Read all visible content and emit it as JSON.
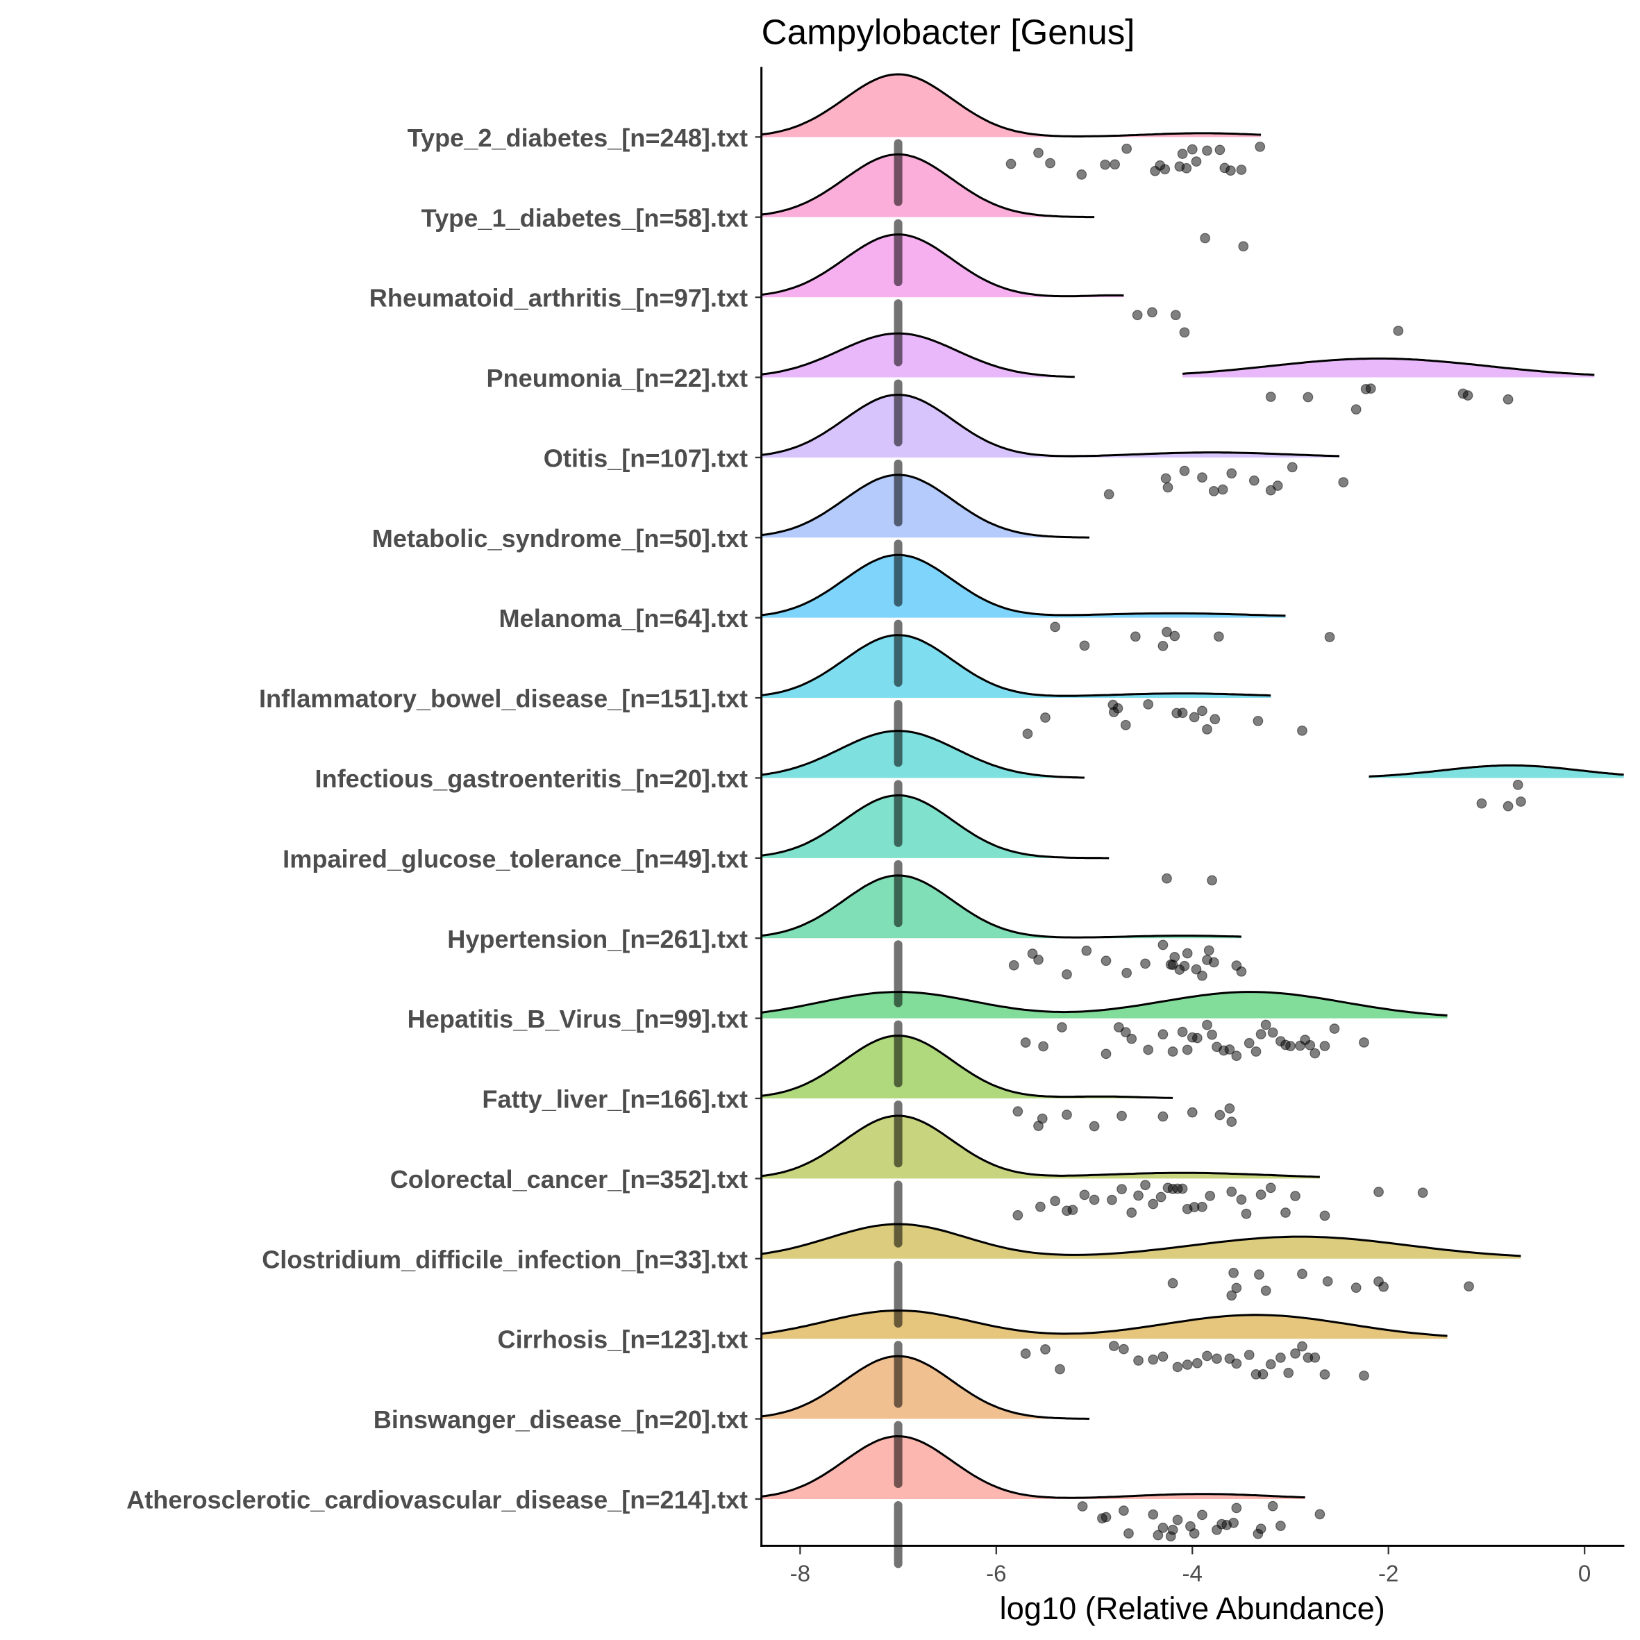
{
  "chart_data": {
    "type": "raincloud",
    "title": "Campylobacter [Genus]",
    "xlabel": "log10 (Relative Abundance)",
    "ylabel": "",
    "xlim": [
      -8.4,
      0.4
    ],
    "xticks": [
      -8,
      -6,
      -4,
      -2,
      0
    ],
    "xtick_labels": [
      "-8",
      "-6",
      "-4",
      "-2",
      "0"
    ],
    "grid": false,
    "legend": "none",
    "zero_value": -7,
    "groups": [
      {
        "label": "Type_2_diabetes_[n=248].txt",
        "color": "#FDB2C6",
        "range": [
          -8.4,
          -3.3
        ],
        "density": [
          [
            -7,
            0.55,
            1.0
          ],
          [
            -3.9,
            0.6,
            0.06
          ]
        ],
        "points": [
          -5.85,
          -5.57,
          -5.45,
          -5.13,
          -4.89,
          -4.79,
          -4.67,
          -4.38,
          -4.33,
          -4.28,
          -4.13,
          -4.1,
          -4.06,
          -4.0,
          -3.96,
          -3.85,
          -3.72,
          -3.67,
          -3.61,
          -3.5,
          -3.31
        ]
      },
      {
        "label": "Type_1_diabetes_[n=58].txt",
        "color": "#FBAEDA",
        "range": [
          -8.4,
          -5.0
        ],
        "density": [
          [
            -7,
            0.55,
            1.0
          ]
        ],
        "points": [
          -3.87,
          -3.48
        ]
      },
      {
        "label": "Rheumatoid_arthritis_[n=97].txt",
        "color": "#F6B0F0",
        "range": [
          -8.4,
          -4.7
        ],
        "density": [
          [
            -7,
            0.55,
            1.0
          ],
          [
            -4.8,
            0.3,
            0.03
          ]
        ],
        "points": [
          -4.56,
          -4.41,
          -4.17,
          -4.08,
          -1.9
        ]
      },
      {
        "label": "Pneumonia_[n=22].txt",
        "color": "#E9B8FB",
        "range": [
          -8.4,
          -5.2
        ],
        "density": [
          [
            -7,
            0.6,
            0.7
          ]
        ],
        "range2": [
          -4.1,
          0.1
        ],
        "density2": [
          [
            -2.1,
            1.1,
            0.3
          ]
        ],
        "points": [
          -3.2,
          -2.82,
          -2.33,
          -2.23,
          -2.18,
          -1.24,
          -1.19,
          -0.78
        ]
      },
      {
        "label": "Otitis_[n=107].txt",
        "color": "#D7C4FC",
        "range": [
          -8.4,
          -2.5
        ],
        "density": [
          [
            -7,
            0.55,
            1.0
          ],
          [
            -3.8,
            0.8,
            0.08
          ]
        ],
        "points": [
          -4.85,
          -4.27,
          -4.25,
          -4.08,
          -3.9,
          -3.78,
          -3.69,
          -3.6,
          -3.37,
          -3.2,
          -3.13,
          -2.98,
          -2.46
        ]
      },
      {
        "label": "Metabolic_syndrome_[n=50].txt",
        "color": "#B4CBFC",
        "range": [
          -8.4,
          -5.05
        ],
        "density": [
          [
            -7,
            0.55,
            1.0
          ]
        ],
        "points": []
      },
      {
        "label": "Melanoma_[n=64].txt",
        "color": "#7ED4FA",
        "range": [
          -8.4,
          -3.05
        ],
        "density": [
          [
            -7,
            0.55,
            1.0
          ],
          [
            -4.2,
            0.9,
            0.07
          ]
        ],
        "points": [
          -5.4,
          -5.1,
          -4.58,
          -4.3,
          -4.26,
          -4.18,
          -3.73,
          -2.6
        ]
      },
      {
        "label": "Inflammatory_bowel_disease_[n=151].txt",
        "color": "#7FDDF0",
        "range": [
          -8.4,
          -3.2
        ],
        "density": [
          [
            -7,
            0.55,
            1.0
          ],
          [
            -4.1,
            0.8,
            0.07
          ]
        ],
        "points": [
          -5.68,
          -5.5,
          -4.81,
          -4.8,
          -4.76,
          -4.68,
          -4.45,
          -4.16,
          -4.1,
          -3.98,
          -3.9,
          -3.85,
          -3.77,
          -3.33,
          -2.88
        ]
      },
      {
        "label": "Infectious_gastroenteritis_[n=20].txt",
        "color": "#7FE0E0",
        "range": [
          -8.4,
          -5.1
        ],
        "density": [
          [
            -7,
            0.6,
            0.75
          ]
        ],
        "range2": [
          -2.2,
          0.4
        ],
        "density2": [
          [
            -0.75,
            0.7,
            0.2
          ]
        ],
        "points": [
          -1.05,
          -0.78,
          -0.68,
          -0.65
        ]
      },
      {
        "label": "Impaired_glucose_tolerance_[n=49].txt",
        "color": "#80E2CC",
        "range": [
          -8.4,
          -4.85
        ],
        "density": [
          [
            -7,
            0.55,
            1.0
          ]
        ],
        "points": [
          -4.26,
          -3.8
        ]
      },
      {
        "label": "Hypertension_[n=261].txt",
        "color": "#81DFB8",
        "range": [
          -8.4,
          -3.5
        ],
        "density": [
          [
            -7,
            0.55,
            1.0
          ],
          [
            -4.1,
            0.6,
            0.04
          ]
        ],
        "points": [
          -5.82,
          -5.63,
          -5.57,
          -5.28,
          -5.08,
          -4.88,
          -4.67,
          -4.48,
          -4.3,
          -4.22,
          -4.2,
          -4.18,
          -4.13,
          -4.08,
          -4.05,
          -3.96,
          -3.9,
          -3.85,
          -3.83,
          -3.78,
          -3.55,
          -3.5
        ]
      },
      {
        "label": "Hepatitis_B_Virus_[n=99].txt",
        "color": "#82DC9A",
        "range": [
          -8.4,
          -1.4
        ],
        "density": [
          [
            -7,
            0.8,
            0.42
          ],
          [
            -3.4,
            0.95,
            0.42
          ]
        ],
        "points": [
          -5.7,
          -5.52,
          -5.33,
          -4.88,
          -4.75,
          -4.68,
          -4.62,
          -4.45,
          -4.3,
          -4.2,
          -4.1,
          -4.05,
          -4.0,
          -3.95,
          -3.85,
          -3.8,
          -3.75,
          -3.68,
          -3.62,
          -3.55,
          -3.42,
          -3.35,
          -3.3,
          -3.25,
          -3.18,
          -3.1,
          -3.05,
          -3.0,
          -2.9,
          -2.85,
          -2.8,
          -2.75,
          -2.65,
          -2.55,
          -2.25
        ]
      },
      {
        "label": "Fatty_liver_[n=166].txt",
        "color": "#B0D97E",
        "range": [
          -8.4,
          -4.2
        ],
        "density": [
          [
            -7,
            0.55,
            1.0
          ],
          [
            -4.9,
            0.4,
            0.03
          ]
        ],
        "points": [
          -5.78,
          -5.57,
          -5.53,
          -5.28,
          -5.0,
          -4.72,
          -4.3,
          -4.0,
          -3.72,
          -3.62,
          -3.6
        ]
      },
      {
        "label": "Colorectal_cancer_[n=352].txt",
        "color": "#C9D47E",
        "range": [
          -8.4,
          -2.7
        ],
        "density": [
          [
            -7,
            0.55,
            1.0
          ],
          [
            -4.1,
            0.9,
            0.09
          ]
        ],
        "points": [
          -5.78,
          -5.55,
          -5.4,
          -5.28,
          -5.22,
          -5.1,
          -5.0,
          -4.82,
          -4.72,
          -4.62,
          -4.55,
          -4.48,
          -4.4,
          -4.32,
          -4.25,
          -4.2,
          -4.15,
          -4.1,
          -4.05,
          -3.98,
          -3.9,
          -3.82,
          -3.6,
          -3.5,
          -3.45,
          -3.3,
          -3.2,
          -3.05,
          -2.95,
          -2.65,
          -2.1,
          -1.65
        ]
      },
      {
        "label": "Clostridium_difficile_infection_[n=33].txt",
        "color": "#DBCC7E",
        "range": [
          -8.4,
          -0.65
        ],
        "density": [
          [
            -7,
            0.7,
            0.55
          ],
          [
            -2.9,
            1.1,
            0.35
          ]
        ],
        "points": [
          -4.2,
          -3.6,
          -3.58,
          -3.55,
          -3.32,
          -3.25,
          -2.88,
          -2.62,
          -2.33,
          -2.1,
          -2.05,
          -1.18
        ]
      },
      {
        "label": "Cirrhosis_[n=123].txt",
        "color": "#E6C57D",
        "range": [
          -8.4,
          -1.4
        ],
        "density": [
          [
            -7,
            0.75,
            0.45
          ],
          [
            -3.35,
            0.95,
            0.38
          ]
        ],
        "points": [
          -5.7,
          -5.5,
          -5.35,
          -4.8,
          -4.7,
          -4.55,
          -4.4,
          -4.3,
          -4.15,
          -4.05,
          -3.95,
          -3.85,
          -3.75,
          -3.62,
          -3.55,
          -3.42,
          -3.35,
          -3.28,
          -3.2,
          -3.1,
          -3.02,
          -2.95,
          -2.88,
          -2.82,
          -2.75,
          -2.65,
          -2.25
        ]
      },
      {
        "label": "Binswanger_disease_[n=20].txt",
        "color": "#F1C090",
        "range": [
          -8.4,
          -5.05
        ],
        "density": [
          [
            -7,
            0.55,
            1.0
          ]
        ],
        "points": []
      },
      {
        "label": "Atherosclerotic_cardiovascular_disease_[n=214].txt",
        "color": "#FBB7B0",
        "range": [
          -8.4,
          -2.85
        ],
        "density": [
          [
            -7,
            0.55,
            1.0
          ],
          [
            -3.9,
            0.7,
            0.08
          ]
        ],
        "points": [
          -5.12,
          -4.92,
          -4.88,
          -4.7,
          -4.65,
          -4.4,
          -4.35,
          -4.3,
          -4.22,
          -4.2,
          -4.15,
          -4.02,
          -3.98,
          -3.9,
          -3.75,
          -3.7,
          -3.65,
          -3.58,
          -3.55,
          -3.33,
          -3.3,
          -3.18,
          -3.1,
          -2.7
        ]
      }
    ]
  }
}
